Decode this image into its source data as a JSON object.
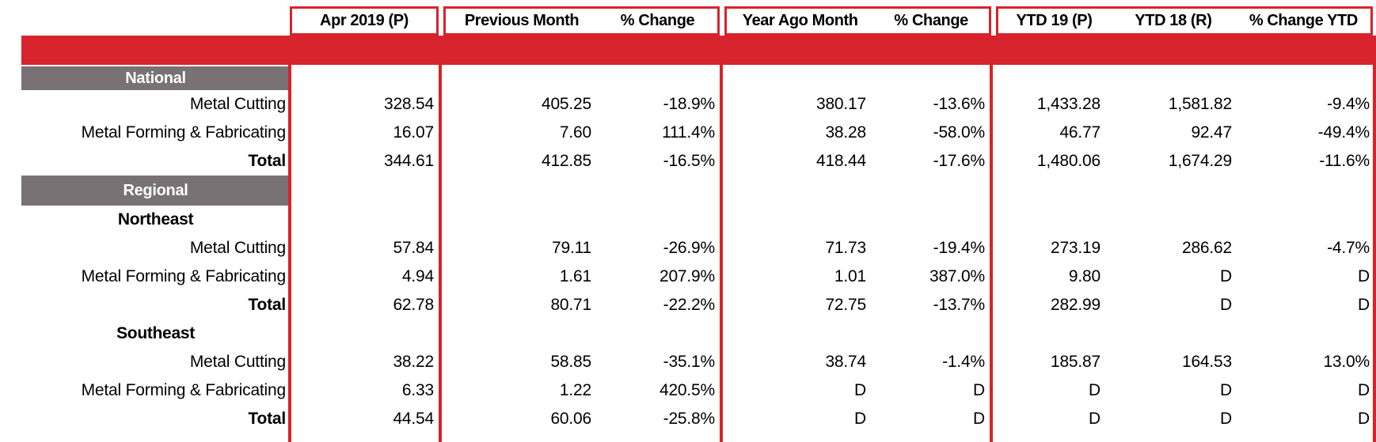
{
  "colors": {
    "accent_red": "#d7232b",
    "band_gray": "#787274",
    "header_text": "#000000"
  },
  "table": {
    "column_headers": [
      "Apr 2019 (P)",
      "Previous Month",
      "% Change",
      "Year Ago Month",
      "% Change",
      "YTD 19 (P)",
      "YTD 18 (R)",
      "% Change YTD"
    ],
    "rows": [
      {
        "type": "band",
        "label": "National"
      },
      {
        "type": "data",
        "label": "Metal Cutting",
        "v": [
          "328.54",
          "405.25",
          "-18.9%",
          "380.17",
          "-13.6%",
          "1,433.28",
          "1,581.82",
          "-9.4%"
        ]
      },
      {
        "type": "data",
        "label": "Metal Forming & Fabricating",
        "v": [
          "16.07",
          "7.60",
          "111.4%",
          "38.28",
          "-58.0%",
          "46.77",
          "92.47",
          "-49.4%"
        ]
      },
      {
        "type": "total",
        "label": "Total",
        "v": [
          "344.61",
          "412.85",
          "-16.5%",
          "418.44",
          "-17.6%",
          "1,480.06",
          "1,674.29",
          "-11.6%"
        ]
      },
      {
        "type": "band",
        "label": "Regional"
      },
      {
        "type": "section",
        "label": "Northeast"
      },
      {
        "type": "data",
        "label": "Metal Cutting",
        "v": [
          "57.84",
          "79.11",
          "-26.9%",
          "71.73",
          "-19.4%",
          "273.19",
          "286.62",
          "-4.7%"
        ]
      },
      {
        "type": "data",
        "label": "Metal Forming & Fabricating",
        "v": [
          "4.94",
          "1.61",
          "207.9%",
          "1.01",
          "387.0%",
          "9.80",
          "D",
          "D"
        ]
      },
      {
        "type": "total",
        "label": "Total",
        "v": [
          "62.78",
          "80.71",
          "-22.2%",
          "72.75",
          "-13.7%",
          "282.99",
          "D",
          "D"
        ]
      },
      {
        "type": "section",
        "label": "Southeast"
      },
      {
        "type": "data",
        "label": "Metal Cutting",
        "v": [
          "38.22",
          "58.85",
          "-35.1%",
          "38.74",
          "-1.4%",
          "185.87",
          "164.53",
          "13.0%"
        ]
      },
      {
        "type": "data",
        "label": "Metal Forming & Fabricating",
        "v": [
          "6.33",
          "1.22",
          "420.5%",
          "D",
          "D",
          "D",
          "D",
          "D"
        ]
      },
      {
        "type": "total",
        "label": "Total",
        "v": [
          "44.54",
          "60.06",
          "-25.8%",
          "D",
          "D",
          "D",
          "D",
          "D"
        ]
      }
    ]
  }
}
